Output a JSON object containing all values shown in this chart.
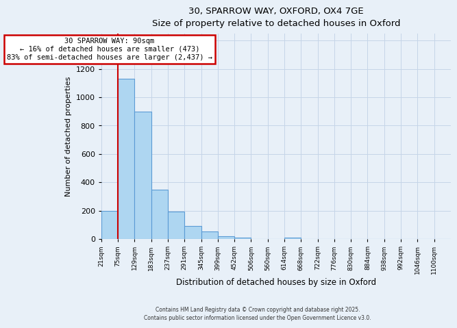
{
  "title": "30, SPARROW WAY, OXFORD, OX4 7GE",
  "subtitle": "Size of property relative to detached houses in Oxford",
  "xlabel": "Distribution of detached houses by size in Oxford",
  "ylabel": "Number of detached properties",
  "bin_labels": [
    "21sqm",
    "75sqm",
    "129sqm",
    "183sqm",
    "237sqm",
    "291sqm",
    "345sqm",
    "399sqm",
    "452sqm",
    "506sqm",
    "560sqm",
    "614sqm",
    "668sqm",
    "722sqm",
    "776sqm",
    "830sqm",
    "884sqm",
    "938sqm",
    "992sqm",
    "1046sqm",
    "1100sqm"
  ],
  "bar_heights": [
    200,
    1130,
    900,
    350,
    195,
    90,
    55,
    20,
    10,
    0,
    0,
    10,
    0,
    0,
    0,
    0,
    0,
    0,
    0,
    0,
    0
  ],
  "bar_color": "#aed6f1",
  "bar_edge_color": "#5b9bd5",
  "vline_color": "#cc0000",
  "ylim": [
    0,
    1450
  ],
  "yticks": [
    0,
    200,
    400,
    600,
    800,
    1000,
    1200,
    1400
  ],
  "annotation_line1": "30 SPARROW WAY: 90sqm",
  "annotation_line2": "← 16% of detached houses are smaller (473)",
  "annotation_line3": "83% of semi-detached houses are larger (2,437) →",
  "annotation_box_color": "#ffffff",
  "annotation_box_edge_color": "#cc0000",
  "footer_line1": "Contains HM Land Registry data © Crown copyright and database right 2025.",
  "footer_line2": "Contains public sector information licensed under the Open Government Licence v3.0.",
  "bg_color": "#e8f0f8",
  "grid_color": "#c5d5e8",
  "vline_x_index": 1
}
